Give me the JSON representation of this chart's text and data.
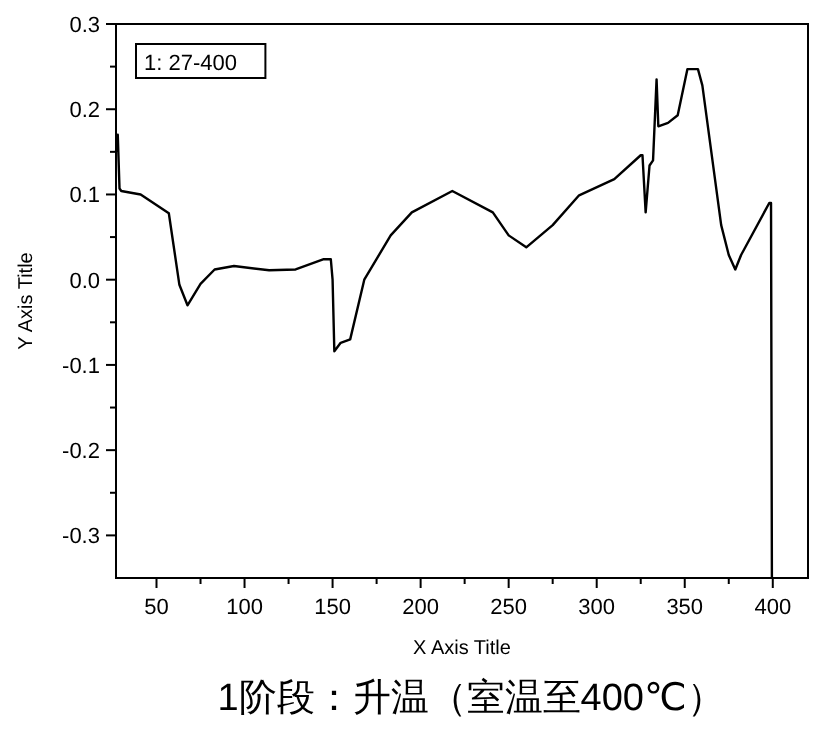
{
  "chart_data": {
    "type": "line",
    "title": "1阶段：升温（室温至400℃）",
    "xlabel": "X Axis Title",
    "ylabel": "Y Axis Title",
    "annotations": [
      "1: 27-400"
    ],
    "xlim": [
      27,
      420
    ],
    "xticks": [
      50,
      {
        "value": 75,
        "label": null
      },
      100,
      {
        "value": 125,
        "label": null
      },
      150,
      {
        "value": 175,
        "label": null
      },
      200,
      {
        "value": 225,
        "label": null
      },
      250,
      {
        "value": 275,
        "label": null
      },
      300,
      {
        "value": 325,
        "label": null
      },
      350,
      {
        "value": 375,
        "label": null
      },
      400
    ],
    "ylim": [
      -0.35,
      0.3
    ],
    "yticks": [
      {
        "value": -0.3,
        "label": "-0.3"
      },
      {
        "value": -0.25,
        "label": null
      },
      {
        "value": -0.2,
        "label": "-0.2"
      },
      {
        "value": -0.15,
        "label": null
      },
      {
        "value": -0.1,
        "label": "-0.1"
      },
      {
        "value": -0.05,
        "label": null
      },
      {
        "value": 0,
        "label": "0.0"
      },
      {
        "value": 0.05,
        "label": null
      },
      {
        "value": 0.1,
        "label": "0.1"
      },
      {
        "value": 0.15,
        "label": null
      },
      {
        "value": 0.2,
        "label": "0.2"
      },
      {
        "value": 0.25,
        "label": null
      },
      {
        "value": 0.3,
        "label": "0.3"
      }
    ],
    "grid": false,
    "marker": "none",
    "line_style": "solid",
    "series": [
      {
        "color": "#000000",
        "x": [
          27,
          28,
          29,
          30,
          41,
          57,
          63,
          67.6,
          75,
          83,
          94,
          114,
          129,
          145,
          149,
          150,
          151,
          154.6,
          160,
          168,
          183,
          195,
          218,
          241,
          250,
          260,
          275,
          290,
          310,
          325,
          326,
          327.8,
          330,
          332,
          334,
          335,
          340.5,
          346,
          351.5,
          357.5,
          360,
          370.7,
          375,
          378.7,
          382,
          398,
          399,
          399.5
        ],
        "values": [
          0.15,
          0.17,
          0.107,
          0.104,
          0.1,
          0.078,
          -0.006,
          -0.03,
          -0.005,
          0.012,
          0.016,
          0.011,
          0.012,
          0.024,
          0.024,
          0.0,
          -0.084,
          -0.074,
          -0.07,
          0.0,
          0.052,
          0.079,
          0.104,
          0.079,
          0.052,
          0.038,
          0.064,
          0.099,
          0.118,
          0.146,
          0.146,
          0.079,
          0.134,
          0.14,
          0.235,
          0.18,
          0.184,
          0.193,
          0.247,
          0.247,
          0.228,
          0.064,
          0.029,
          0.012,
          0.029,
          0.09,
          0.09,
          -0.35
        ]
      }
    ]
  }
}
